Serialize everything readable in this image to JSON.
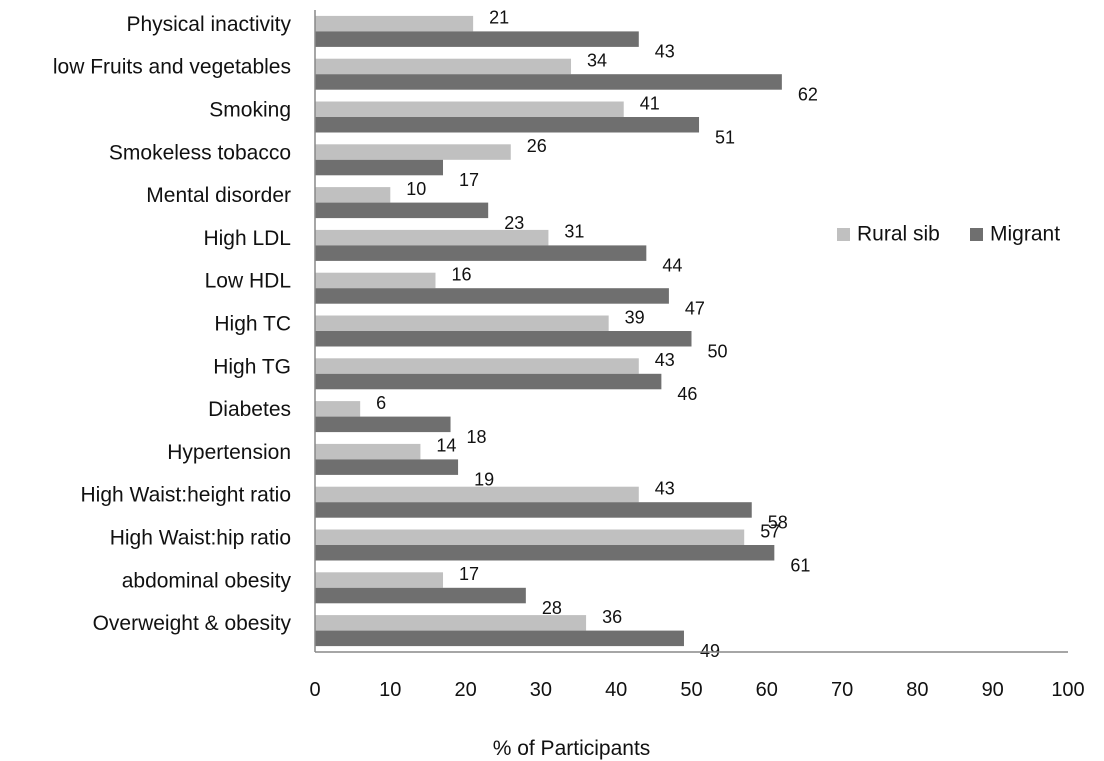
{
  "chart_data": {
    "type": "bar",
    "orientation": "horizontal",
    "categories": [
      "Physical inactivity",
      "low Fruits and vegetables",
      "Smoking",
      "Smokeless tobacco",
      "Mental disorder",
      "High LDL",
      "Low HDL",
      "High TC",
      "High TG",
      "Diabetes",
      "Hypertension",
      "High Waist:height ratio",
      "High Waist:hip ratio",
      "abdominal obesity",
      "Overweight & obesity"
    ],
    "series": [
      {
        "name": "Rural sib",
        "color": "#c0c0c0",
        "values": [
          21,
          34,
          41,
          26,
          10,
          31,
          16,
          39,
          43,
          6,
          14,
          43,
          57,
          17,
          36
        ]
      },
      {
        "name": "Migrant",
        "color": "#6f6f6f",
        "values": [
          43,
          62,
          51,
          17,
          23,
          44,
          47,
          50,
          46,
          18,
          19,
          58,
          61,
          28,
          49
        ]
      }
    ],
    "title": "",
    "xlabel": "% of Participants",
    "ylabel": "",
    "xlim": [
      0,
      100
    ],
    "xticks": [
      0,
      10,
      20,
      30,
      40,
      50,
      60,
      70,
      80,
      90,
      100
    ],
    "grid": false,
    "legend_position": "right"
  }
}
